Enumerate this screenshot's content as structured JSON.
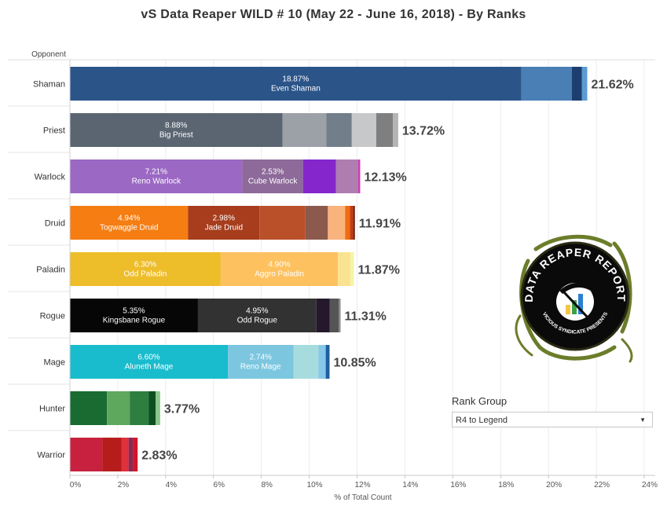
{
  "title": "vS Data Reaper WILD # 10 (May 22 - June 16, 2018) - By Ranks",
  "rank_group": {
    "label": "Rank Group",
    "selected": "R4 to Legend"
  },
  "chart_data": {
    "type": "bar",
    "orientation": "horizontal",
    "stacked": true,
    "row_header": "Opponent",
    "xlabel": "% of Total Count",
    "xlim": [
      0,
      24
    ],
    "x_ticks": [
      "0%",
      "2%",
      "4%",
      "6%",
      "8%",
      "10%",
      "12%",
      "14%",
      "16%",
      "18%",
      "20%",
      "22%",
      "24%"
    ],
    "grid": true,
    "categories": [
      "Shaman",
      "Priest",
      "Warlock",
      "Druid",
      "Paladin",
      "Rogue",
      "Mage",
      "Hunter",
      "Warrior"
    ],
    "totals": [
      "21.62%",
      "13.72%",
      "12.13%",
      "11.91%",
      "11.87%",
      "11.31%",
      "10.85%",
      "3.77%",
      "2.83%"
    ],
    "rows": [
      {
        "class": "Shaman",
        "total": 21.62,
        "segments": [
          {
            "value": 18.87,
            "color": "#2b5589",
            "pct": "18.87%",
            "name": "Even Shaman"
          },
          {
            "value": 2.1,
            "color": "#4a7fb5"
          },
          {
            "value": 0.43,
            "color": "#1c3f70"
          },
          {
            "value": 0.22,
            "color": "#5b9bd5"
          }
        ]
      },
      {
        "class": "Priest",
        "total": 13.72,
        "segments": [
          {
            "value": 8.88,
            "color": "#5a6571",
            "pct": "8.88%",
            "name": "Big Priest"
          },
          {
            "value": 1.84,
            "color": "#9ba1a6"
          },
          {
            "value": 1.06,
            "color": "#727e8a"
          },
          {
            "value": 1.02,
            "color": "#c6c8ca"
          },
          {
            "value": 0.7,
            "color": "#7f7f7f"
          },
          {
            "value": 0.22,
            "color": "#b2b4b6"
          }
        ]
      },
      {
        "class": "Warlock",
        "total": 12.13,
        "segments": [
          {
            "value": 7.21,
            "color": "#9b68c4",
            "pct": "7.21%",
            "name": "Reno Warlock"
          },
          {
            "value": 2.53,
            "color": "#8d6a99",
            "pct": "2.53%",
            "name": "Cube Warlock"
          },
          {
            "value": 1.38,
            "color": "#8526cc"
          },
          {
            "value": 0.93,
            "color": "#b07db1"
          },
          {
            "value": 0.08,
            "color": "#cf3ab8"
          }
        ]
      },
      {
        "class": "Druid",
        "total": 11.91,
        "segments": [
          {
            "value": 4.94,
            "color": "#f57d12",
            "pct": "4.94%",
            "name": "Togwaggle Druid"
          },
          {
            "value": 2.98,
            "color": "#a73d1c",
            "pct": "2.98%",
            "name": "Jade Druid"
          },
          {
            "value": 1.92,
            "color": "#b9502a"
          },
          {
            "value": 0.94,
            "color": "#8c5a4c"
          },
          {
            "value": 0.72,
            "color": "#f9b37c"
          },
          {
            "value": 0.2,
            "color": "#f26b10"
          },
          {
            "value": 0.13,
            "color": "#c43c12"
          },
          {
            "value": 0.08,
            "color": "#6b2610"
          }
        ]
      },
      {
        "class": "Paladin",
        "total": 11.87,
        "segments": [
          {
            "value": 6.3,
            "color": "#edbd2a",
            "pct": "6.30%",
            "name": "Odd Paladin"
          },
          {
            "value": 4.9,
            "color": "#fdc15f",
            "pct": "4.90%",
            "name": "Aggro Paladin"
          },
          {
            "value": 0.52,
            "color": "#f9e391"
          },
          {
            "value": 0.15,
            "color": "#f5f4a6"
          }
        ]
      },
      {
        "class": "Rogue",
        "total": 11.31,
        "segments": [
          {
            "value": 5.35,
            "color": "#060606",
            "pct": "5.35%",
            "name": "Kingsbane Rogue"
          },
          {
            "value": 4.95,
            "color": "#323232",
            "pct": "4.95%",
            "name": "Odd Rogue"
          },
          {
            "value": 0.55,
            "color": "#26182c"
          },
          {
            "value": 0.38,
            "color": "#555555"
          },
          {
            "value": 0.08,
            "color": "#888888"
          }
        ]
      },
      {
        "class": "Mage",
        "total": 10.85,
        "segments": [
          {
            "value": 6.6,
            "color": "#19bccc",
            "pct": "6.60%",
            "name": "Aluneth Mage"
          },
          {
            "value": 2.74,
            "color": "#7cc6e0",
            "pct": "2.74%",
            "name": "Reno Mage"
          },
          {
            "value": 1.05,
            "color": "#a7dcdf"
          },
          {
            "value": 0.3,
            "color": "#87c8ea"
          },
          {
            "value": 0.16,
            "color": "#1f5fa0"
          }
        ]
      },
      {
        "class": "Hunter",
        "total": 3.77,
        "segments": [
          {
            "value": 1.55,
            "color": "#196b31"
          },
          {
            "value": 0.95,
            "color": "#5ea85e"
          },
          {
            "value": 0.8,
            "color": "#2e7f3f"
          },
          {
            "value": 0.28,
            "color": "#0d4f22"
          },
          {
            "value": 0.19,
            "color": "#8cc68c"
          }
        ]
      },
      {
        "class": "Warrior",
        "total": 2.83,
        "segments": [
          {
            "value": 1.35,
            "color": "#c7213f"
          },
          {
            "value": 0.8,
            "color": "#b71c1c"
          },
          {
            "value": 0.3,
            "color": "#e0303c"
          },
          {
            "value": 0.18,
            "color": "#8a2a55"
          },
          {
            "value": 0.2,
            "color": "#d21528"
          }
        ]
      }
    ]
  },
  "logo": {
    "text": "DATA REAPER REPORT",
    "subtext": "VICIOUS SYNDICATE PRESENTS",
    "colors": {
      "bg": "#0a0a0a",
      "vine": "#6b7d2a",
      "text": "#ffffff",
      "bar_yellow": "#f4c542",
      "bar_green": "#3aa14a",
      "bar_blue": "#2c7fd1"
    }
  }
}
